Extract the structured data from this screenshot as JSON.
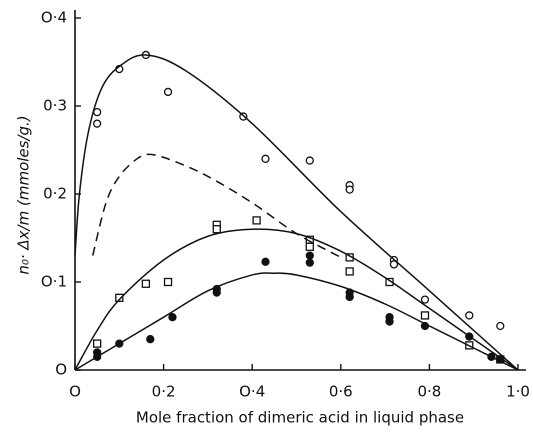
{
  "chart_data": {
    "type": "scatter",
    "x_label": "Mole fraction of dimeric acid in liquid phase",
    "y_label": "n₀· Δx/m (mmoles/g.)",
    "xlim": [
      0,
      1.0
    ],
    "ylim": [
      0,
      0.4
    ],
    "xticks": [
      {
        "value": 0,
        "label": "O"
      },
      {
        "value": 0.2,
        "label": "0·2"
      },
      {
        "value": 0.4,
        "label": "O·4"
      },
      {
        "value": 0.6,
        "label": "0·6"
      },
      {
        "value": 0.8,
        "label": "0·8"
      },
      {
        "value": 1.0,
        "label": "1·0"
      }
    ],
    "yticks": [
      {
        "value": 0,
        "label": "O"
      },
      {
        "value": 0.1,
        "label": "O·1"
      },
      {
        "value": 0.2,
        "label": "0·2"
      },
      {
        "value": 0.3,
        "label": "0·3"
      },
      {
        "value": 0.4,
        "label": "O·4"
      }
    ],
    "color": "#111111",
    "series": [
      {
        "style": "open-circle",
        "x": [
          0.05,
          0.05,
          0.1,
          0.16,
          0.21,
          0.38,
          0.43,
          0.53,
          0.62,
          0.62,
          0.72,
          0.72,
          0.79,
          0.89,
          0.96
        ],
        "values": [
          0.293,
          0.28,
          0.342,
          0.358,
          0.316,
          0.288,
          0.24,
          0.238,
          0.21,
          0.205,
          0.125,
          0.12,
          0.08,
          0.062,
          0.05
        ]
      },
      {
        "style": "open-square",
        "x": [
          0.05,
          0.1,
          0.16,
          0.21,
          0.32,
          0.32,
          0.41,
          0.53,
          0.53,
          0.62,
          0.62,
          0.71,
          0.79,
          0.89,
          0.96
        ],
        "values": [
          0.03,
          0.082,
          0.098,
          0.1,
          0.165,
          0.16,
          0.17,
          0.148,
          0.14,
          0.128,
          0.112,
          0.1,
          0.062,
          0.028,
          0.012
        ]
      },
      {
        "style": "filled-circle",
        "x": [
          0.05,
          0.05,
          0.1,
          0.17,
          0.22,
          0.32,
          0.32,
          0.43,
          0.53,
          0.53,
          0.62,
          0.62,
          0.71,
          0.71,
          0.79,
          0.89,
          0.94,
          0.96
        ],
        "values": [
          0.02,
          0.015,
          0.03,
          0.035,
          0.06,
          0.092,
          0.088,
          0.123,
          0.13,
          0.122,
          0.088,
          0.083,
          0.06,
          0.055,
          0.05,
          0.038,
          0.015,
          0.012
        ]
      },
      {
        "style": "solid-line",
        "x": [
          0,
          0.01,
          0.03,
          0.06,
          0.1,
          0.16,
          0.25,
          0.4,
          0.6,
          0.8,
          1.0
        ],
        "values": [
          0.13,
          0.2,
          0.27,
          0.32,
          0.345,
          0.358,
          0.34,
          0.28,
          0.18,
          0.09,
          0
        ]
      },
      {
        "style": "dashed-line",
        "x": [
          0.04,
          0.07,
          0.1,
          0.14,
          0.17,
          0.22,
          0.3,
          0.4,
          0.5,
          0.6
        ],
        "values": [
          0.13,
          0.19,
          0.22,
          0.24,
          0.245,
          0.238,
          0.22,
          0.19,
          0.155,
          0.128
        ]
      },
      {
        "style": "solid-line",
        "x": [
          0,
          0.05,
          0.1,
          0.2,
          0.3,
          0.4,
          0.5,
          0.6,
          0.7,
          0.8,
          0.9,
          1.0
        ],
        "values": [
          0,
          0.045,
          0.08,
          0.125,
          0.152,
          0.16,
          0.155,
          0.135,
          0.105,
          0.07,
          0.035,
          0
        ]
      },
      {
        "style": "solid-line",
        "x": [
          0,
          0.1,
          0.2,
          0.3,
          0.4,
          0.45,
          0.5,
          0.6,
          0.7,
          0.8,
          0.9,
          1.0
        ],
        "values": [
          0,
          0.03,
          0.06,
          0.09,
          0.108,
          0.11,
          0.108,
          0.095,
          0.075,
          0.05,
          0.025,
          0
        ]
      }
    ]
  }
}
